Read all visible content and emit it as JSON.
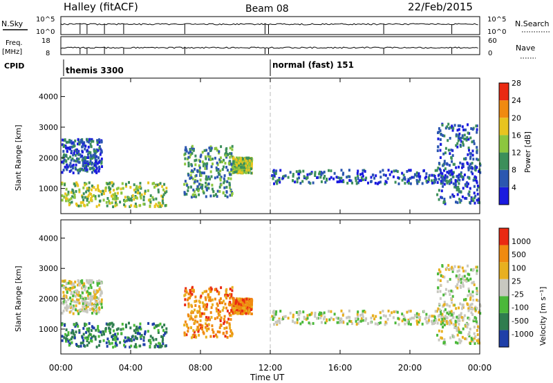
{
  "header": {
    "station": "Halley (fitACF)",
    "beam": "Beam 08",
    "date": "22/Feb/2015"
  },
  "top_panels": {
    "nsky_label": "N.Sky",
    "nsky_ticks": [
      "10^5",
      "10^0"
    ],
    "nsearch_label": "N.Search",
    "nsearch_ticks": [
      "10^5",
      "10^0"
    ],
    "freq_label": "Freq.",
    "freq_unit": "[MHz]",
    "freq_ticks": [
      "18",
      "8"
    ],
    "nave_label": "Nave",
    "nave_ticks": [
      "60",
      "0"
    ],
    "cpid_label": "CPID",
    "cpid_segments": [
      {
        "start_hour": 0,
        "label": "themis 3300"
      },
      {
        "start_hour": 12,
        "label": "normal (fast) 151"
      }
    ]
  },
  "chart_data": [
    {
      "type": "heatmap",
      "title": "",
      "xlabel": "",
      "ylabel": "Slant Range [km]",
      "xlim_hours": [
        0,
        24
      ],
      "ylim_km": [
        180,
        4600
      ],
      "y_ticks": [
        "1000",
        "2000",
        "3000",
        "4000"
      ],
      "colorbar_label": "Power [dB]",
      "colorbar_ticks": [
        "4",
        "8",
        "12",
        "16",
        "20",
        "24",
        "28"
      ],
      "colorbar_colors": [
        "#1a1adf",
        "#2c57b0",
        "#3c8f5a",
        "#8cc63f",
        "#e8c41f",
        "#f08a10",
        "#ea2a12"
      ],
      "grid": false
    },
    {
      "type": "heatmap",
      "title": "",
      "xlabel": "Time UT",
      "ylabel": "Slant Range [km]",
      "xlim_hours": [
        0,
        24
      ],
      "ylim_km": [
        180,
        4600
      ],
      "y_ticks": [
        "1000",
        "2000",
        "3000",
        "4000"
      ],
      "x_ticks": [
        "00:00",
        "04:00",
        "08:00",
        "12:00",
        "16:00",
        "20:00",
        "00:00"
      ],
      "colorbar_label": "Velocity [m s⁻¹]",
      "colorbar_ticks": [
        "1000",
        "500",
        "100",
        "25",
        "-25",
        "-100",
        "-500",
        "-1000"
      ],
      "colorbar_colors": [
        "#1f3fa8",
        "#2f7d4f",
        "#4bb83a",
        "#c8c8c0",
        "#e8b020",
        "#f08a10",
        "#ea2a12"
      ],
      "grid": false,
      "scatter_regions": [
        {
          "name": "",
          "t_range_hours": [
            0.0,
            2.3
          ],
          "range_km": [
            1500,
            2600
          ],
          "power_class": 1,
          "velocity_class": 3
        },
        {
          "name": "",
          "t_range_hours": [
            0.0,
            6.0
          ],
          "range_km": [
            400,
            1200
          ],
          "power_class": 3,
          "velocity_class": 1
        },
        {
          "name": "",
          "t_range_hours": [
            7.0,
            9.8
          ],
          "range_km": [
            700,
            2400
          ],
          "power_class": 2,
          "velocity_class": 5
        },
        {
          "name": "",
          "t_range_hours": [
            9.8,
            10.9
          ],
          "range_km": [
            1500,
            2000
          ],
          "power_class": 3,
          "velocity_class": 5
        },
        {
          "name": "",
          "t_range_hours": [
            12.0,
            23.0
          ],
          "range_km": [
            1150,
            1600
          ],
          "power_class": 1,
          "velocity_class": 3
        },
        {
          "name": "",
          "t_range_hours": [
            21.5,
            24.0
          ],
          "range_km": [
            500,
            3100
          ],
          "power_class": 1,
          "velocity_class": 3
        }
      ]
    }
  ]
}
